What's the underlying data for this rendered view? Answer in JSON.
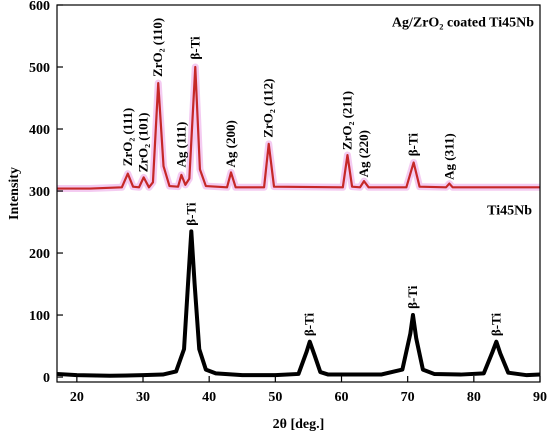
{
  "chart_data": {
    "type": "line",
    "xlabel": "2θ [deg.]",
    "ylabel": "Intensity",
    "xlim": [
      17,
      90
    ],
    "ylim": [
      -8,
      600
    ],
    "x_ticks": [
      20,
      30,
      40,
      50,
      60,
      70,
      80,
      90
    ],
    "y_ticks": [
      0,
      100,
      200,
      300,
      400,
      500,
      600
    ],
    "grid": false,
    "colors": {
      "coated": "#c62828",
      "coated_glow": "#e06bd6",
      "substrate": "#000000"
    },
    "series": [
      {
        "name": "Ag/ZrO₂ coated Ti45Nb",
        "baseline": 304,
        "points": [
          [
            17,
            304
          ],
          [
            22,
            304
          ],
          [
            26.8,
            306
          ],
          [
            27.7,
            328
          ],
          [
            28.5,
            307
          ],
          [
            29.4,
            306
          ],
          [
            30.1,
            322
          ],
          [
            30.9,
            306
          ],
          [
            31.5,
            314
          ],
          [
            32.3,
            474
          ],
          [
            33.1,
            340
          ],
          [
            34.0,
            308
          ],
          [
            35.3,
            307
          ],
          [
            35.8,
            326
          ],
          [
            36.4,
            310
          ],
          [
            37.0,
            320
          ],
          [
            37.9,
            500
          ],
          [
            38.6,
            335
          ],
          [
            39.5,
            308
          ],
          [
            42.7,
            306
          ],
          [
            43.3,
            330
          ],
          [
            44.0,
            306
          ],
          [
            48.3,
            306
          ],
          [
            49.0,
            376
          ],
          [
            49.8,
            307
          ],
          [
            60.2,
            306
          ],
          [
            60.9,
            358
          ],
          [
            61.6,
            307
          ],
          [
            62.8,
            306
          ],
          [
            63.4,
            316
          ],
          [
            64.1,
            306
          ],
          [
            69.8,
            306
          ],
          [
            70.9,
            346
          ],
          [
            71.8,
            307
          ],
          [
            75.8,
            306
          ],
          [
            76.3,
            312
          ],
          [
            76.8,
            306
          ],
          [
            90,
            306
          ]
        ]
      },
      {
        "name": "Ti45Nb",
        "points": [
          [
            17,
            5
          ],
          [
            20,
            3
          ],
          [
            25,
            2
          ],
          [
            30,
            3
          ],
          [
            33,
            4
          ],
          [
            35,
            9
          ],
          [
            36.2,
            45
          ],
          [
            36.8,
            150
          ],
          [
            37.3,
            235
          ],
          [
            37.8,
            150
          ],
          [
            38.5,
            45
          ],
          [
            39.5,
            12
          ],
          [
            41,
            6
          ],
          [
            45,
            3
          ],
          [
            50,
            3
          ],
          [
            53.5,
            5
          ],
          [
            54.7,
            40
          ],
          [
            55.2,
            57
          ],
          [
            55.9,
            36
          ],
          [
            56.8,
            8
          ],
          [
            58,
            4
          ],
          [
            62,
            4
          ],
          [
            66,
            4
          ],
          [
            69.2,
            12
          ],
          [
            70.4,
            70
          ],
          [
            70.8,
            100
          ],
          [
            71.3,
            62
          ],
          [
            72.3,
            12
          ],
          [
            74,
            5
          ],
          [
            78,
            4
          ],
          [
            81.5,
            6
          ],
          [
            82.8,
            40
          ],
          [
            83.4,
            57
          ],
          [
            84.0,
            38
          ],
          [
            85.2,
            7
          ],
          [
            88,
            3
          ],
          [
            90,
            4
          ]
        ]
      }
    ],
    "annotations": [
      {
        "text": "ZrO₂ (111)",
        "x": 27.7,
        "y": 340,
        "color": "#000"
      },
      {
        "text": "ZrO₂ (101)",
        "x": 30.1,
        "y": 330,
        "color": "#000"
      },
      {
        "text": "ZrO₂ (110)",
        "x": 32.3,
        "y": 484,
        "color": "#000"
      },
      {
        "text": "Ag (111)",
        "x": 35.8,
        "y": 338,
        "color": "#000"
      },
      {
        "text": "β-Ti",
        "x": 37.9,
        "y": 512,
        "color": "#000"
      },
      {
        "text": "Ag (200)",
        "x": 43.3,
        "y": 338,
        "color": "#000"
      },
      {
        "text": "ZrO₂ (112)",
        "x": 49.0,
        "y": 386,
        "color": "#000"
      },
      {
        "text": "ZrO₂ (211)",
        "x": 60.9,
        "y": 366,
        "color": "#000"
      },
      {
        "text": "Ag (220)",
        "x": 63.4,
        "y": 322,
        "color": "#000"
      },
      {
        "text": "β-Ti",
        "x": 70.9,
        "y": 356,
        "color": "#000"
      },
      {
        "text": "Ag (311)",
        "x": 76.3,
        "y": 318,
        "color": "#000"
      },
      {
        "text": "β-Ti",
        "x": 37.3,
        "y": 244,
        "color": "#000"
      },
      {
        "text": "β-Ti",
        "x": 55.2,
        "y": 66,
        "color": "#000"
      },
      {
        "text": "β-Ti",
        "x": 70.8,
        "y": 110,
        "color": "#000"
      },
      {
        "text": "β-Ti",
        "x": 83.4,
        "y": 66,
        "color": "#000"
      }
    ],
    "legend_labels": [
      {
        "text": "Ag/ZrO₂ coated Ti45Nb",
        "placement": "top-right"
      },
      {
        "text": "Ti45Nb",
        "placement": "right, above the Ti45Nb pattern"
      }
    ]
  }
}
